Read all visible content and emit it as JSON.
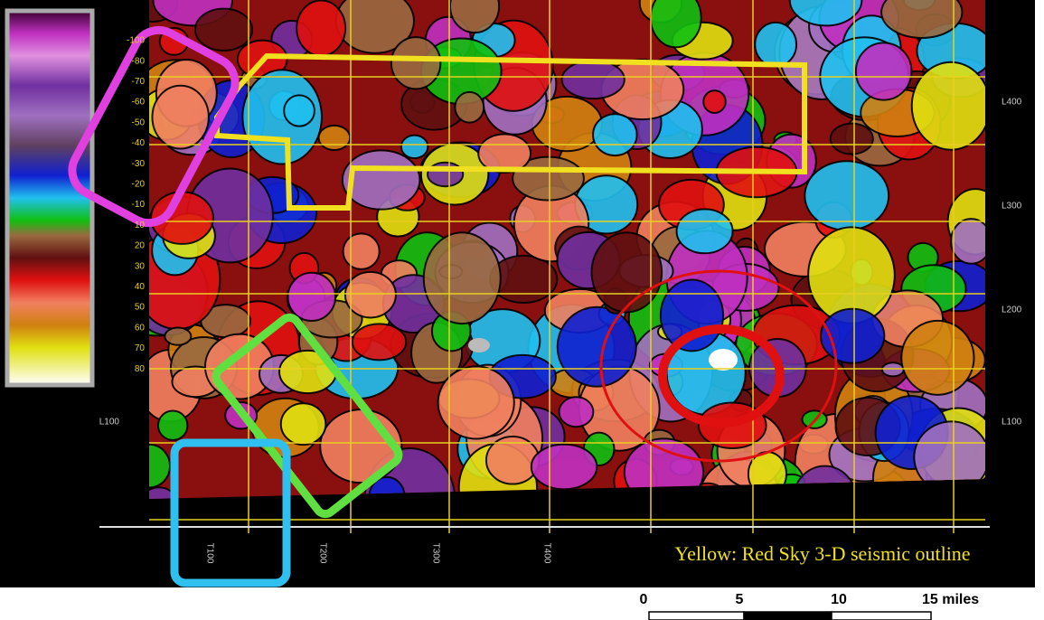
{
  "legend": {
    "labels": [
      "-100",
      "-80",
      "-70",
      "-60",
      "-50",
      "-40",
      "-30",
      "-20",
      "-10",
      "10",
      "20",
      "30",
      "40",
      "50",
      "60",
      "70",
      "80"
    ]
  },
  "axes": {
    "right_labels": [
      "L400",
      "L300",
      "L200",
      "L100"
    ],
    "left_labels": [
      "L100"
    ],
    "bottom_labels": [
      "T100",
      "T200",
      "T300",
      "T400"
    ]
  },
  "caption": "Yellow: Red Sky 3-D seismic outline",
  "scale_bar": {
    "labels": [
      "0",
      "5",
      "10",
      "15 miles"
    ]
  }
}
